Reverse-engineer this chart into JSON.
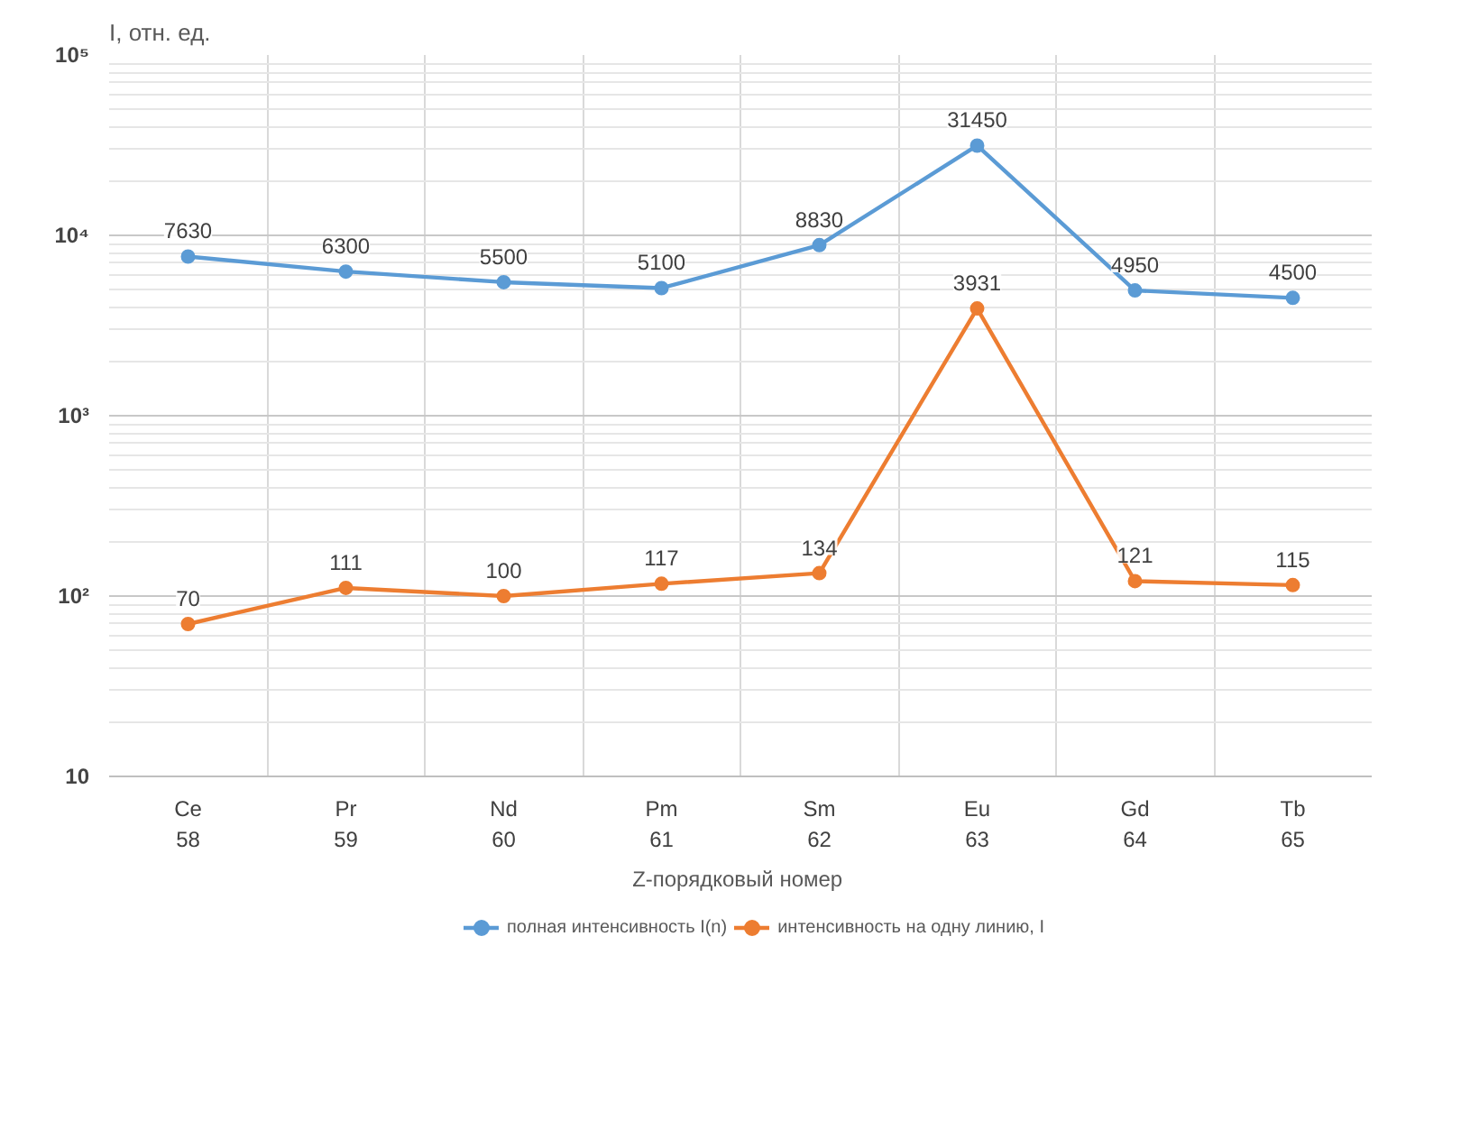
{
  "chart_data": {
    "type": "line",
    "ylabel": "I, отн. ед.",
    "xlabel": "Z-порядковый  номер",
    "categories": [
      "Ce\n58",
      "Pr\n59",
      "Nd\n60",
      "Pm\n61",
      "Sm\n62",
      "Eu\n63",
      "Gd\n64",
      "Tb\n65"
    ],
    "series": [
      {
        "name": "полная интенсивность I(n)",
        "color": "#5b9bd5",
        "values": [
          7630,
          6300,
          5500,
          5100,
          8830,
          31450,
          4950,
          4500
        ]
      },
      {
        "name": "интенсивность на одну линию, I",
        "color": "#ed7d31",
        "values": [
          70,
          111,
          100,
          117,
          134,
          3931,
          121,
          115
        ]
      }
    ],
    "log": "y",
    "ylim": [
      10,
      100000
    ],
    "yticks": [
      10,
      {
        "value": 100,
        "label": "10²"
      },
      {
        "value": 1000,
        "label": "10³"
      },
      {
        "value": 10000,
        "label": "10⁴"
      },
      {
        "value": 100000,
        "label": "10⁵"
      }
    ],
    "grid": true,
    "legend": "bottom",
    "marker": "circle",
    "line_style": "solid",
    "data_labels": true
  }
}
